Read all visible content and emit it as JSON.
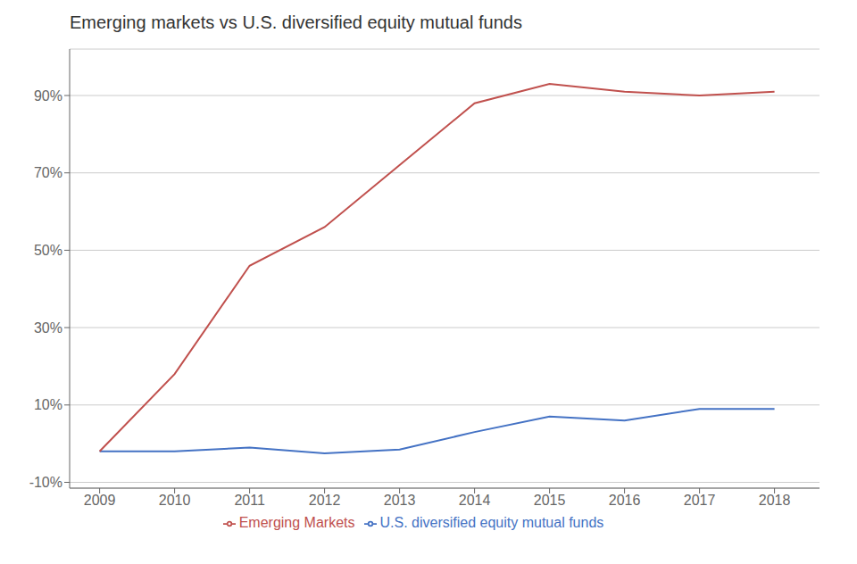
{
  "chart_data": {
    "type": "line",
    "title": "Emerging markets vs U.S. diversified equity mutual funds",
    "x": [
      2009,
      2010,
      2011,
      2012,
      2013,
      2014,
      2015,
      2016,
      2017,
      2018
    ],
    "series": [
      {
        "name": "U.S. diversified equity mutual funds",
        "color": "#4472C4",
        "values": [
          -0.02,
          -0.02,
          -0.01,
          -0.025,
          -0.015,
          0.03,
          0.07,
          0.06,
          0.09,
          0.09
        ]
      },
      {
        "name": "Emerging Markets",
        "color": "#C0504D",
        "values": [
          -0.02,
          0.18,
          0.46,
          0.56,
          0.72,
          0.88,
          0.93,
          0.91,
          0.9,
          0.91
        ]
      }
    ],
    "xlim": [
      2008.6,
      2018.6
    ],
    "xticks": [
      2009,
      2010,
      2011,
      2012,
      2013,
      2014,
      2015,
      2016,
      2017,
      2018
    ],
    "ylim": [
      -0.115,
      1.02
    ],
    "yticks": [
      {
        "value": -0.1,
        "label": "-10%"
      },
      {
        "value": 0.1,
        "label": "10%"
      },
      {
        "value": 0.3,
        "label": "30%"
      },
      {
        "value": 0.5,
        "label": "50%"
      },
      {
        "value": 0.7,
        "label": "70%"
      },
      {
        "value": 0.9,
        "label": "90%"
      }
    ],
    "grid": true,
    "legend": "bottom"
  }
}
